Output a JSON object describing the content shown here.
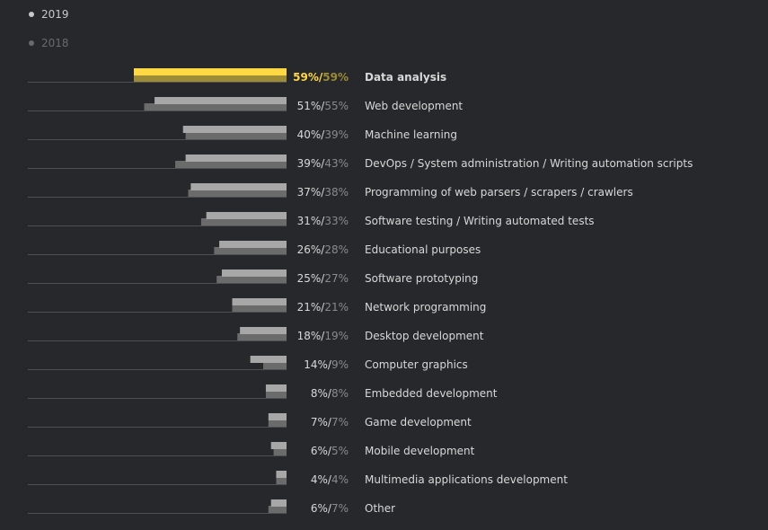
{
  "legend": {
    "series_2019": "2019",
    "series_2018": "2018"
  },
  "colors": {
    "bar_2019": "#a7a7a7",
    "bar_2018": "#6b6b6b",
    "highlight_2019": "#ffd843",
    "highlight_2018": "#9e8b35",
    "baseline": "#4f5054",
    "text": "#d8d8d8",
    "text_2018": "#8a8a8a"
  },
  "chart_data": {
    "type": "bar",
    "orientation": "horizontal",
    "unit": "%",
    "xlim": [
      0,
      59
    ],
    "highlighted_category": "Data analysis",
    "categories": [
      "Data analysis",
      "Web development",
      "Machine learning",
      "DevOps / System administration / Writing automation scripts",
      "Programming of web parsers / scrapers / crawlers",
      "Software testing / Writing automated tests",
      "Educational purposes",
      "Software prototyping",
      "Network programming",
      "Desktop development",
      "Computer graphics",
      "Embedded development",
      "Game development",
      "Mobile development",
      "Multimedia applications development",
      "Other"
    ],
    "series": [
      {
        "name": "2019",
        "values": [
          59,
          51,
          40,
          39,
          37,
          31,
          26,
          25,
          21,
          18,
          14,
          8,
          7,
          6,
          4,
          6
        ]
      },
      {
        "name": "2018",
        "values": [
          59,
          55,
          39,
          43,
          38,
          33,
          28,
          27,
          21,
          19,
          9,
          8,
          7,
          5,
          4,
          7
        ]
      }
    ]
  }
}
